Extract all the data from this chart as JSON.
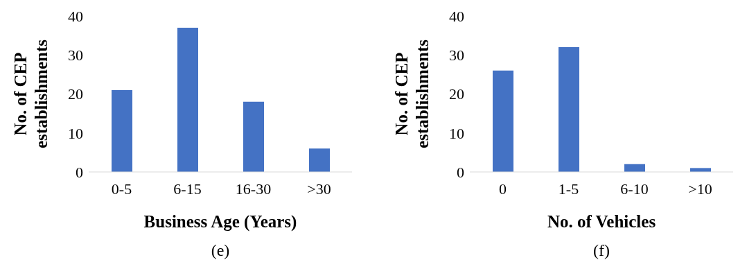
{
  "chart_data": [
    {
      "type": "bar",
      "categories": [
        "0-5",
        "6-15",
        "16-30",
        ">30"
      ],
      "values": [
        21,
        37,
        18,
        6
      ],
      "color": "#4472c4",
      "ylim": [
        0,
        40
      ],
      "yticks": [
        0,
        10,
        20,
        30,
        40
      ],
      "xlabel": "Business Age (Years)",
      "ylabel": "No. of CEP establishments",
      "grid": false,
      "annotations": [
        "(e)"
      ]
    },
    {
      "type": "bar",
      "categories": [
        "0",
        "1-5",
        "6-10",
        ">10"
      ],
      "values": [
        26,
        32,
        2,
        1
      ],
      "color": "#4472c4",
      "ylim": [
        0,
        40
      ],
      "yticks": [
        0,
        10,
        20,
        30,
        40
      ],
      "xlabel": "No. of Vehicles",
      "ylabel": "No. of CEP establishments",
      "grid": false,
      "annotations": [
        "(f)"
      ]
    }
  ]
}
